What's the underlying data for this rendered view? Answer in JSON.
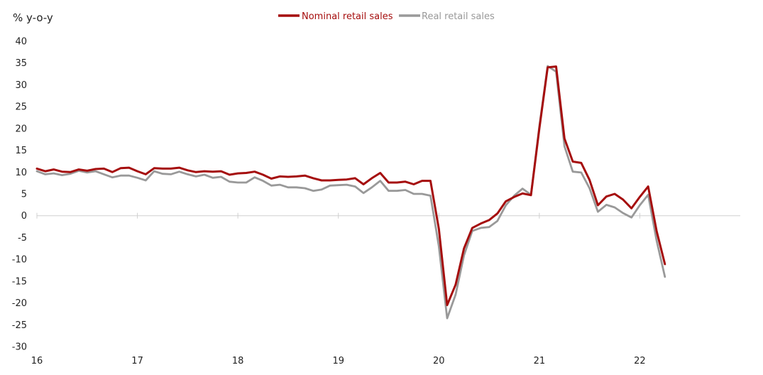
{
  "chart_data": {
    "type": "line",
    "title": "",
    "ylabel": "% y-o-y",
    "xlabel": "",
    "ylim": [
      -30,
      40
    ],
    "yticks": [
      40,
      35,
      30,
      25,
      20,
      15,
      10,
      5,
      0,
      -5,
      -10,
      -15,
      -20,
      -25,
      -30
    ],
    "x_tick_labels": [
      "16",
      "17",
      "18",
      "19",
      "20",
      "21",
      "22"
    ],
    "x_tick_positions": [
      2016,
      2017,
      2018,
      2019,
      2020,
      2021,
      2022
    ],
    "xlim": [
      2016,
      2023
    ],
    "grid": false,
    "legend_position": "top-center",
    "series": [
      {
        "name": "Nominal retail sales",
        "color": "#a50d0d",
        "x": [
          2016.0,
          2016.083,
          2016.167,
          2016.25,
          2016.333,
          2016.417,
          2016.5,
          2016.583,
          2016.667,
          2016.75,
          2016.833,
          2016.917,
          2017.0,
          2017.083,
          2017.167,
          2017.25,
          2017.333,
          2017.417,
          2017.5,
          2017.583,
          2017.667,
          2017.75,
          2017.833,
          2017.917,
          2018.0,
          2018.083,
          2018.167,
          2018.25,
          2018.333,
          2018.417,
          2018.5,
          2018.583,
          2018.667,
          2018.75,
          2018.833,
          2018.917,
          2019.0,
          2019.083,
          2019.167,
          2019.25,
          2019.333,
          2019.417,
          2019.5,
          2019.583,
          2019.667,
          2019.75,
          2019.833,
          2019.917,
          2020.0,
          2020.083,
          2020.167,
          2020.25,
          2020.333,
          2020.417,
          2020.5,
          2020.583,
          2020.667,
          2020.75,
          2020.833,
          2020.917,
          2021.0,
          2021.083,
          2021.167,
          2021.25,
          2021.333,
          2021.417,
          2021.5,
          2021.583,
          2021.667,
          2021.75,
          2021.833,
          2021.917,
          2022.0,
          2022.083,
          2022.167,
          2022.25
        ],
        "values": [
          10.8,
          10.2,
          10.6,
          10.1,
          10.0,
          10.6,
          10.3,
          10.7,
          10.8,
          10.0,
          10.9,
          11.0,
          10.2,
          9.5,
          10.9,
          10.8,
          10.8,
          11.0,
          10.4,
          10.0,
          10.2,
          10.1,
          10.2,
          9.4,
          9.7,
          9.8,
          10.1,
          9.4,
          8.5,
          9.0,
          8.9,
          9.0,
          9.2,
          8.6,
          8.1,
          8.1,
          8.2,
          8.3,
          8.6,
          7.2,
          8.6,
          9.8,
          7.6,
          7.6,
          7.8,
          7.2,
          8.0,
          8.0,
          -3.0,
          -20.5,
          -15.8,
          -7.5,
          -2.8,
          -1.8,
          -1.0,
          0.5,
          3.3,
          4.3,
          5.1,
          4.7,
          20.0,
          34.0,
          34.2,
          17.7,
          12.4,
          12.1,
          8.2,
          2.4,
          4.4,
          5.0,
          3.7,
          1.7,
          4.3,
          6.7,
          -3.5,
          -11.1
        ]
      },
      {
        "name": "Real retail sales",
        "color": "#999999",
        "x": [
          2016.0,
          2016.083,
          2016.167,
          2016.25,
          2016.333,
          2016.417,
          2016.5,
          2016.583,
          2016.667,
          2016.75,
          2016.833,
          2016.917,
          2017.0,
          2017.083,
          2017.167,
          2017.25,
          2017.333,
          2017.417,
          2017.5,
          2017.583,
          2017.667,
          2017.75,
          2017.833,
          2017.917,
          2018.0,
          2018.083,
          2018.167,
          2018.25,
          2018.333,
          2018.417,
          2018.5,
          2018.583,
          2018.667,
          2018.75,
          2018.833,
          2018.917,
          2019.0,
          2019.083,
          2019.167,
          2019.25,
          2019.333,
          2019.417,
          2019.5,
          2019.583,
          2019.667,
          2019.75,
          2019.833,
          2019.917,
          2020.0,
          2020.083,
          2020.167,
          2020.25,
          2020.333,
          2020.417,
          2020.5,
          2020.583,
          2020.667,
          2020.75,
          2020.833,
          2020.917,
          2021.0,
          2021.083,
          2021.167,
          2021.25,
          2021.333,
          2021.417,
          2021.5,
          2021.583,
          2021.667,
          2021.75,
          2021.833,
          2021.917,
          2022.0,
          2022.083,
          2022.167,
          2022.25
        ],
        "values": [
          10.2,
          9.5,
          9.7,
          9.3,
          9.6,
          10.3,
          9.9,
          10.2,
          9.5,
          8.8,
          9.2,
          9.2,
          8.7,
          8.1,
          10.2,
          9.6,
          9.5,
          10.1,
          9.5,
          9.0,
          9.4,
          8.7,
          8.9,
          7.8,
          7.6,
          7.6,
          8.8,
          8.0,
          6.9,
          7.1,
          6.5,
          6.5,
          6.3,
          5.7,
          6.0,
          6.9,
          7.0,
          7.1,
          6.7,
          5.2,
          6.5,
          8.0,
          5.7,
          5.7,
          5.9,
          5.0,
          5.0,
          4.6,
          -7.0,
          -23.5,
          -18.1,
          -9.1,
          -3.5,
          -2.8,
          -2.6,
          -1.2,
          2.4,
          4.6,
          6.2,
          4.8,
          20.5,
          34.3,
          33.0,
          15.9,
          10.1,
          9.9,
          6.3,
          0.9,
          2.5,
          1.9,
          0.6,
          -0.4,
          2.4,
          4.8,
          -5.7,
          -14.0
        ]
      }
    ]
  }
}
